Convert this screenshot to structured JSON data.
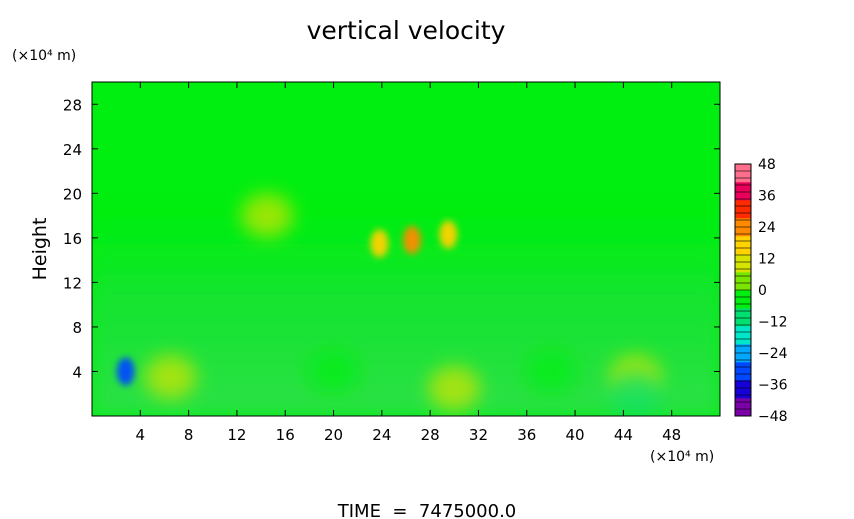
{
  "chart_data": {
    "type": "heatmap",
    "title": "vertical velocity",
    "ylabel": "Height",
    "y_unit": "(×10⁴ m)",
    "x_unit": "(×10⁴ m)",
    "xlim": [
      0,
      52
    ],
    "ylim": [
      0,
      30
    ],
    "x_ticks": [
      4,
      8,
      12,
      16,
      20,
      24,
      28,
      32,
      36,
      40,
      44,
      48
    ],
    "y_ticks": [
      4,
      8,
      12,
      16,
      20,
      24,
      28
    ],
    "x_tick_labels": [
      "4",
      "8",
      "12",
      "16",
      "20",
      "24",
      "28",
      "32",
      "36",
      "40",
      "44",
      "48"
    ],
    "y_tick_labels": [
      "4",
      "8",
      "12",
      "16",
      "20",
      "24",
      "28"
    ],
    "colorbar": {
      "range": [
        -48,
        48
      ],
      "ticks": [
        48,
        36,
        24,
        12,
        0,
        -12,
        -24,
        -36,
        -48
      ],
      "tick_labels": [
        "48",
        "36",
        "24",
        "12",
        "0",
        "−12",
        "−24",
        "−36",
        "−48"
      ],
      "colors": [
        "#7a00a8",
        "#1600d8",
        "#0048ff",
        "#00a8ff",
        "#00e6c8",
        "#00e070",
        "#00ee10",
        "#7ae600",
        "#d6e400",
        "#ffd200",
        "#ff8a00",
        "#ff2a00",
        "#e8005a",
        "#ff6e8c"
      ]
    },
    "features": [
      {
        "x": 2.8,
        "y": 4.0,
        "value": -30
      },
      {
        "x": 6.5,
        "y": 3.5,
        "value": 8
      },
      {
        "x": 14.5,
        "y": 18.0,
        "value": 12
      },
      {
        "x": 23.8,
        "y": 15.5,
        "value": 20
      },
      {
        "x": 26.5,
        "y": 15.8,
        "value": 22
      },
      {
        "x": 29.5,
        "y": 16.3,
        "value": 18
      },
      {
        "x": 30.0,
        "y": 2.5,
        "value": 12
      },
      {
        "x": 45.0,
        "y": 3.5,
        "value": 8
      },
      {
        "x": 45.0,
        "y": 2.0,
        "value": -8
      },
      {
        "x": 38.0,
        "y": 4.0,
        "value": -6
      },
      {
        "x": 20.0,
        "y": 4.0,
        "value": -5
      }
    ]
  },
  "footer": "TIME  =  7475000.0"
}
